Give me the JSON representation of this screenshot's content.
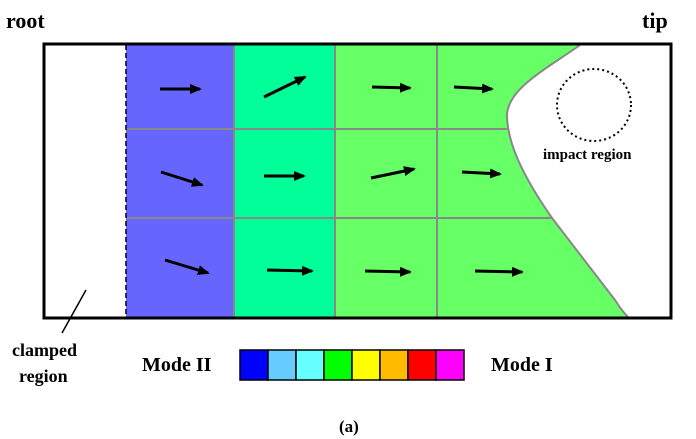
{
  "labels": {
    "root": "root",
    "tip": "tip",
    "clamped_line1": "clamped",
    "clamped_line2": "region",
    "impact": "impact region",
    "mode_left": "Mode II",
    "mode_right": "Mode I",
    "caption": "(a)"
  },
  "colors": {
    "column_1": "#6666ff",
    "column_2": "#00ff99",
    "columns_3_4": "#66ff66",
    "grid_line": "#888888",
    "scale": [
      "#0000ff",
      "#66ccff",
      "#66ffff",
      "#00ff00",
      "#ffff00",
      "#ffbb00",
      "#ff0000",
      "#ff00ff"
    ]
  },
  "scale_range": [
    "Mode II",
    "Mode I"
  ],
  "arrows": {
    "icon": "right-arrow-icon",
    "directions": [
      [
        "right",
        "up-right",
        "right",
        "slight-down-right"
      ],
      [
        "down-right",
        "right",
        "slight-up-right",
        "right"
      ],
      [
        "down-right",
        "right",
        "right",
        "right"
      ]
    ]
  }
}
